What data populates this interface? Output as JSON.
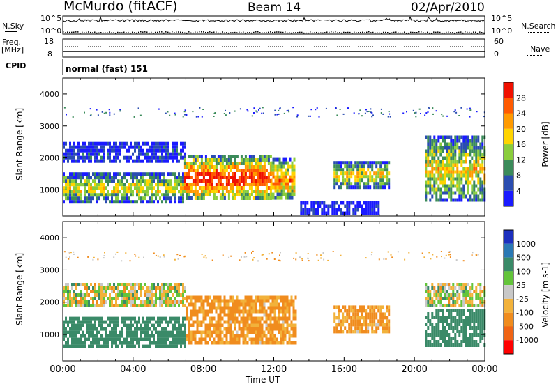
{
  "header": {
    "title": "McMurdo (fitACF)",
    "beam": "Beam 14",
    "date": "02/Apr/2010"
  },
  "param_panels": {
    "nsky_label": "N.Sky",
    "nsearch_label": "N.Search",
    "nsky_ticks": [
      "10^5",
      "10^0"
    ],
    "nsearch_ticks": [
      "10^5",
      "10^0"
    ],
    "freq_label": "Freq.",
    "freq_unit": "[MHz]",
    "freq_ticks": [
      "18",
      "8"
    ],
    "nave_label": "Nave",
    "nave_ticks": [
      "60",
      "0"
    ],
    "cpid_label": "CPID",
    "cpid_value": "normal (fast) 151"
  },
  "colors": {
    "power": [
      "#1a1aff",
      "#2a4db0",
      "#3b8b5a",
      "#8acd3c",
      "#ffd400",
      "#ff9a00",
      "#ff5a00",
      "#f01000"
    ],
    "velocity": [
      "#1c2fbe",
      "#2a78b4",
      "#3a8a68",
      "#63c43a",
      "#c8c8c8",
      "#f2b23b",
      "#f08c1e",
      "#f06414",
      "#ff0000"
    ],
    "ground_scatter": "#9a9a9a"
  },
  "chart_data": [
    {
      "type": "heatmap",
      "name": "power",
      "ylabel": "Slant Range [km]",
      "ylim": [
        180,
        4500
      ],
      "yticks": [
        "1000",
        "2000",
        "3000",
        "4000"
      ],
      "xlim_hours": [
        0,
        24
      ],
      "colorbar_label": "Power [dB]",
      "colorbar_ticks": [
        "4",
        "8",
        "12",
        "16",
        "20",
        "24",
        "28"
      ],
      "colorbar_range": [
        0,
        32
      ],
      "echo_regions": [
        {
          "t0": 0.0,
          "t1": 6.9,
          "r0": 650,
          "r1": 1550,
          "level": 0.45
        },
        {
          "t0": 0.0,
          "t1": 7.0,
          "r0": 1900,
          "r1": 2500,
          "level": 0.12
        },
        {
          "t0": 6.9,
          "t1": 11.8,
          "r0": 700,
          "r1": 2100,
          "level": 0.78
        },
        {
          "t0": 11.8,
          "t1": 13.2,
          "r0": 700,
          "r1": 2000,
          "level": 0.6
        },
        {
          "t0": 15.4,
          "t1": 18.6,
          "r0": 1100,
          "r1": 1900,
          "level": 0.5
        },
        {
          "t0": 20.6,
          "t1": 24.0,
          "r0": 700,
          "r1": 2700,
          "level": 0.5
        },
        {
          "t0": 13.5,
          "t1": 18.0,
          "r0": 250,
          "r1": 650,
          "level": 0.05
        }
      ]
    },
    {
      "type": "heatmap",
      "name": "velocity",
      "ylabel": "Slant Range [km]",
      "ylim": [
        180,
        4500
      ],
      "yticks": [
        "1000",
        "2000",
        "3000",
        "4000"
      ],
      "xlabel": "Time UT",
      "xticks": [
        "00:00",
        "04:00",
        "08:00",
        "12:00",
        "16:00",
        "20:00",
        "00:00"
      ],
      "xlim_hours": [
        0,
        24
      ],
      "colorbar_label": "Velocity [m s-1]",
      "colorbar_ticks": [
        "1000",
        "500",
        "100",
        "25",
        "-25",
        "-100",
        "-500",
        "-1000"
      ],
      "echo_regions": [
        {
          "t0": 0.0,
          "t1": 7.0,
          "r0": 650,
          "r1": 1550,
          "vel": 300
        },
        {
          "t0": 0.0,
          "t1": 7.0,
          "r0": 1900,
          "r1": 2600,
          "vel": 0
        },
        {
          "t0": 7.0,
          "t1": 13.2,
          "r0": 700,
          "r1": 2200,
          "vel": -150
        },
        {
          "t0": 15.4,
          "t1": 18.6,
          "r0": 1100,
          "r1": 1900,
          "vel": -150
        },
        {
          "t0": 20.6,
          "t1": 24.0,
          "r0": 700,
          "r1": 1800,
          "vel": 300
        },
        {
          "t0": 20.6,
          "t1": 24.0,
          "r0": 1900,
          "r1": 2600,
          "vel": 0
        }
      ]
    }
  ]
}
